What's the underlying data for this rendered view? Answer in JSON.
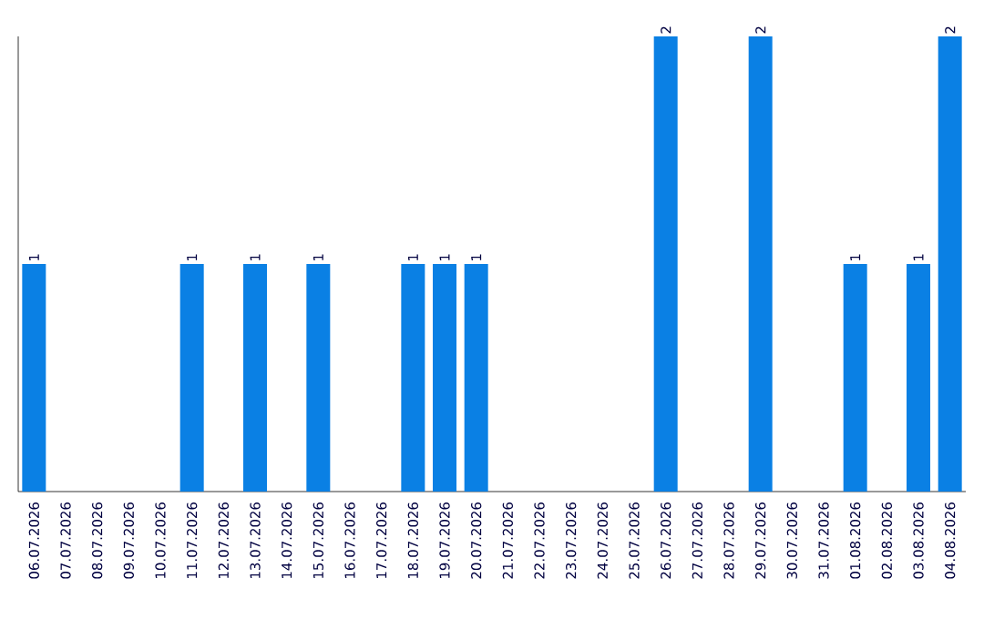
{
  "chart_data": {
    "type": "bar",
    "tick_labels": "x",
    "color": "#0a80e4",
    "categories": [
      "06.07.2026",
      "07.07.2026",
      "08.07.2026",
      "09.07.2026",
      "10.07.2026",
      "11.07.2026",
      "12.07.2026",
      "13.07.2026",
      "14.07.2026",
      "15.07.2026",
      "16.07.2026",
      "17.07.2026",
      "18.07.2026",
      "19.07.2026",
      "20.07.2026",
      "21.07.2026",
      "22.07.2026",
      "23.07.2026",
      "24.07.2026",
      "25.07.2026",
      "26.07.2026",
      "27.07.2026",
      "28.07.2026",
      "29.07.2026",
      "30.07.2026",
      "31.07.2026",
      "01.08.2026",
      "02.08.2026",
      "03.08.2026",
      "04.08.2026"
    ],
    "values": [
      1,
      0,
      0,
      0,
      0,
      1,
      0,
      1,
      0,
      1,
      0,
      0,
      1,
      1,
      1,
      0,
      0,
      0,
      0,
      0,
      2,
      0,
      0,
      2,
      0,
      0,
      1,
      0,
      1,
      2
    ],
    "value_labels": [
      "1",
      null,
      null,
      null,
      null,
      "1",
      null,
      "1",
      null,
      "1",
      null,
      null,
      "1",
      "1",
      "1",
      null,
      null,
      null,
      null,
      null,
      "2",
      null,
      null,
      "2",
      null,
      null,
      "1",
      null,
      "1",
      "2"
    ],
    "grid": false
  }
}
